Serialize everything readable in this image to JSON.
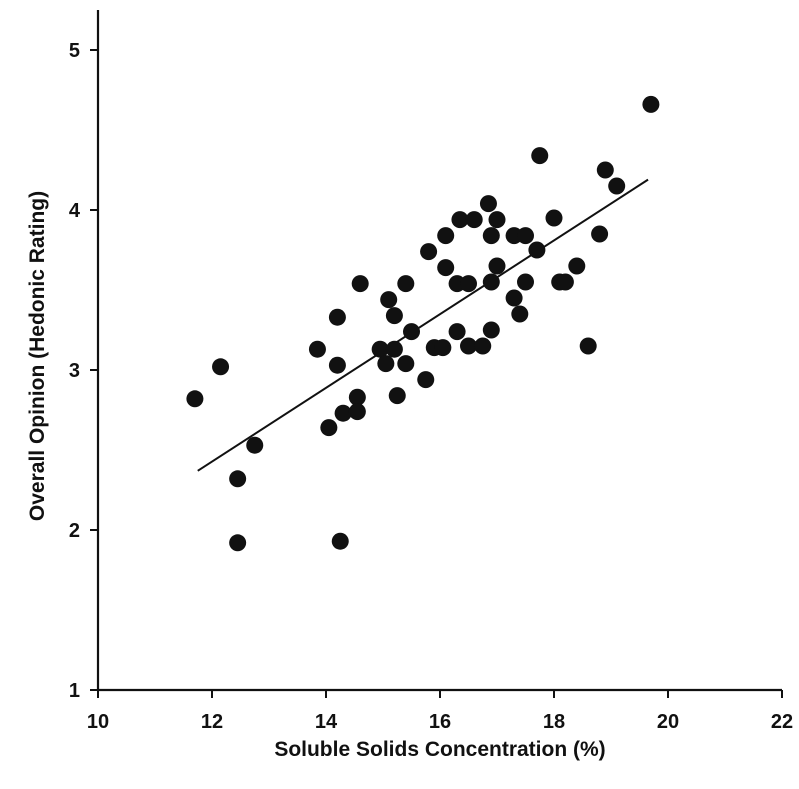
{
  "chart_data": {
    "type": "scatter",
    "title": "",
    "xlabel": "Soluble Solids Concentration (%)",
    "ylabel": "Overall Opinion (Hedonic Rating)",
    "xlim": [
      10,
      22
    ],
    "ylim": [
      1,
      5
    ],
    "x_ticks": [
      10,
      12,
      14,
      16,
      18,
      20,
      22
    ],
    "y_ticks": [
      1,
      2,
      3,
      4,
      5
    ],
    "grid": false,
    "legend": "none",
    "series": [
      {
        "points": [
          [
            11.7,
            2.82
          ],
          [
            12.15,
            3.02
          ],
          [
            12.45,
            2.32
          ],
          [
            12.45,
            1.92
          ],
          [
            12.75,
            2.53
          ],
          [
            13.85,
            3.13
          ],
          [
            14.05,
            2.64
          ],
          [
            14.2,
            3.33
          ],
          [
            14.2,
            3.03
          ],
          [
            14.3,
            2.73
          ],
          [
            14.25,
            1.93
          ],
          [
            14.55,
            2.83
          ],
          [
            14.55,
            2.74
          ],
          [
            14.6,
            3.54
          ],
          [
            14.95,
            3.13
          ],
          [
            15.05,
            3.04
          ],
          [
            15.1,
            3.44
          ],
          [
            15.2,
            3.34
          ],
          [
            15.2,
            3.13
          ],
          [
            15.25,
            2.84
          ],
          [
            15.4,
            3.54
          ],
          [
            15.4,
            3.04
          ],
          [
            15.5,
            3.24
          ],
          [
            15.75,
            2.94
          ],
          [
            15.8,
            3.74
          ],
          [
            15.9,
            3.14
          ],
          [
            16.05,
            3.14
          ],
          [
            16.1,
            3.84
          ],
          [
            16.1,
            3.64
          ],
          [
            16.3,
            3.54
          ],
          [
            16.3,
            3.24
          ],
          [
            16.35,
            3.94
          ],
          [
            16.5,
            3.54
          ],
          [
            16.5,
            3.15
          ],
          [
            16.6,
            3.94
          ],
          [
            16.75,
            3.15
          ],
          [
            16.85,
            4.04
          ],
          [
            16.9,
            3.84
          ],
          [
            16.9,
            3.55
          ],
          [
            16.9,
            3.25
          ],
          [
            17.0,
            3.94
          ],
          [
            17.0,
            3.65
          ],
          [
            17.3,
            3.84
          ],
          [
            17.3,
            3.45
          ],
          [
            17.4,
            3.35
          ],
          [
            17.5,
            3.84
          ],
          [
            17.5,
            3.55
          ],
          [
            17.7,
            3.75
          ],
          [
            17.75,
            4.34
          ],
          [
            18.0,
            3.95
          ],
          [
            18.1,
            3.55
          ],
          [
            18.2,
            3.55
          ],
          [
            18.4,
            3.65
          ],
          [
            18.6,
            3.15
          ],
          [
            18.8,
            3.85
          ],
          [
            18.9,
            4.25
          ],
          [
            19.1,
            4.15
          ],
          [
            19.7,
            4.66
          ]
        ]
      }
    ],
    "fit_line": {
      "x": [
        11.75,
        19.65
      ],
      "y": [
        2.37,
        4.19
      ]
    }
  }
}
